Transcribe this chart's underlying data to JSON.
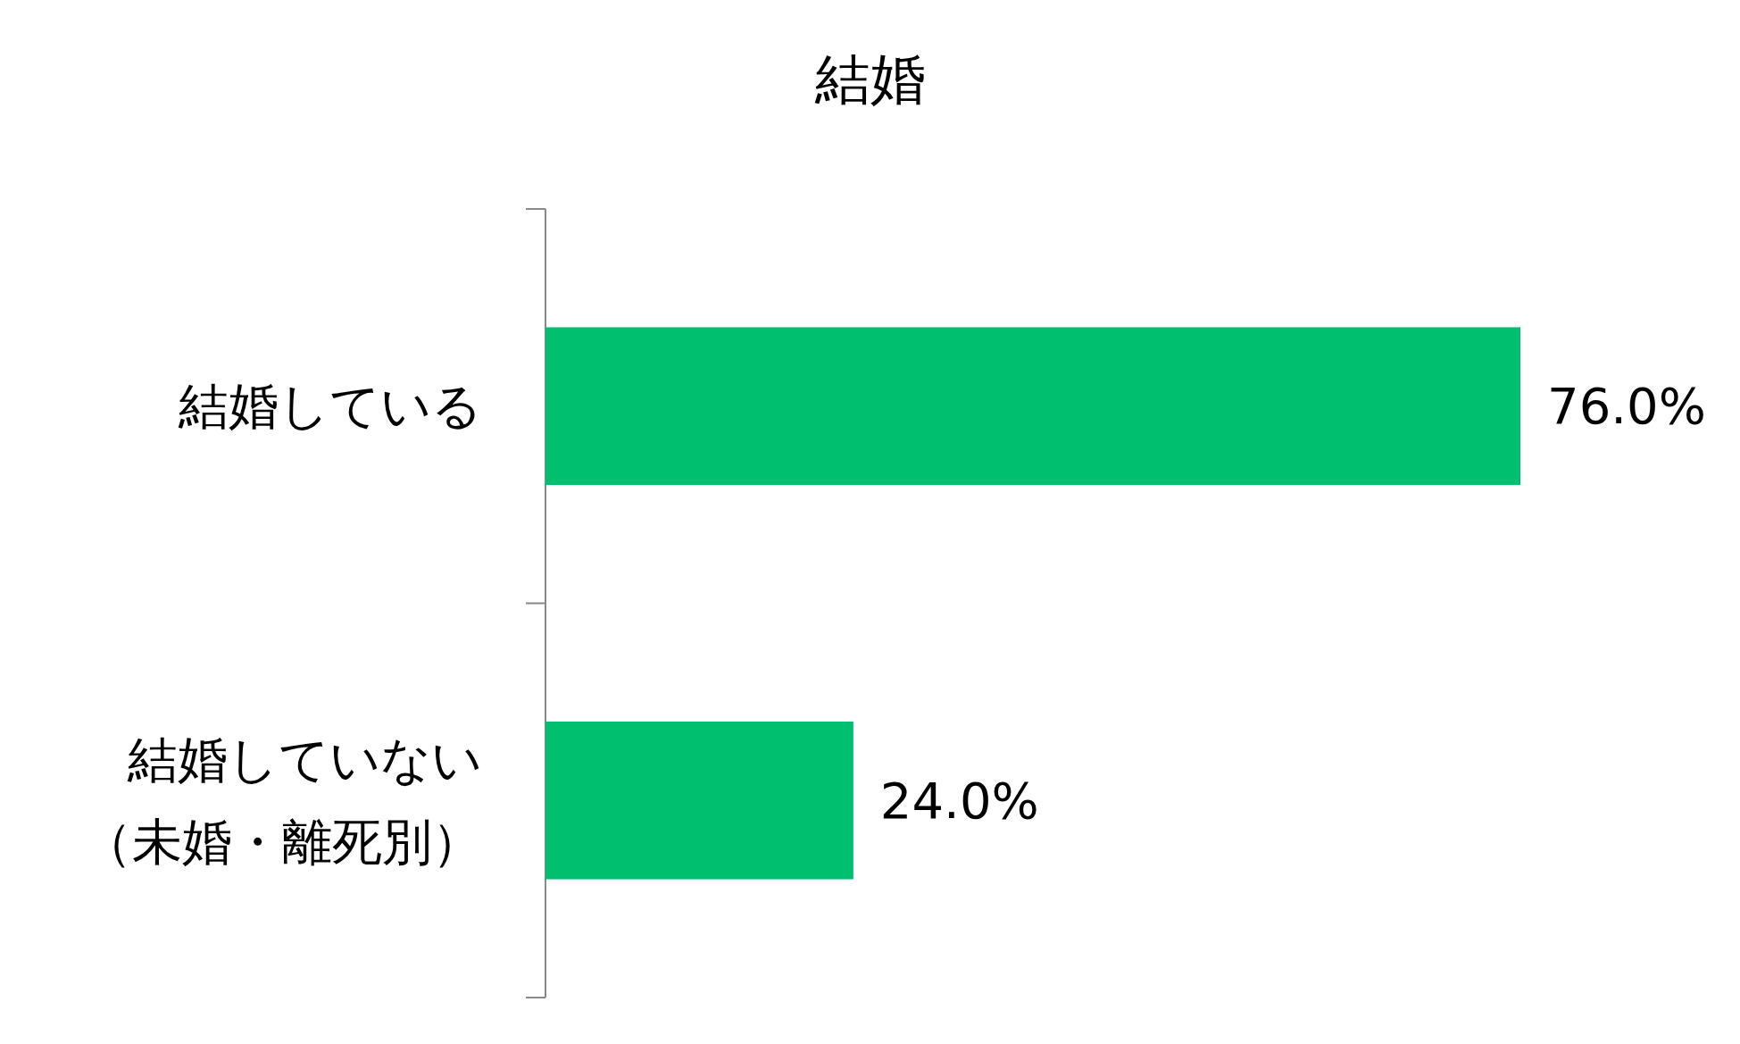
{
  "chart_data": {
    "type": "bar",
    "orientation": "horizontal",
    "title": "結婚",
    "categories": [
      "結婚している",
      "結婚していない（未婚・離死別）"
    ],
    "values": [
      76.0,
      24.0
    ],
    "color": "#00bf6f",
    "value_labels": [
      "76.0%",
      "24.0%"
    ]
  }
}
